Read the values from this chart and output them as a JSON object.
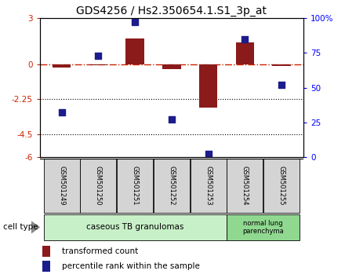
{
  "title": "GDS4256 / Hs2.350654.1.S1_3p_at",
  "samples": [
    "GSM501249",
    "GSM501250",
    "GSM501251",
    "GSM501252",
    "GSM501253",
    "GSM501254",
    "GSM501255"
  ],
  "transformed_count": [
    -0.2,
    -0.05,
    1.7,
    -0.3,
    -2.8,
    1.4,
    -0.1
  ],
  "percentile_rank": [
    32,
    73,
    97,
    27,
    2,
    85,
    52
  ],
  "ylim_left": [
    -6,
    3
  ],
  "ylim_right": [
    0,
    100
  ],
  "yticks_left": [
    -6,
    -4.5,
    -2.25,
    0,
    3
  ],
  "ytick_labels_left": [
    "-6",
    "-4.5",
    "-2.25",
    "0",
    "3"
  ],
  "yticks_right": [
    0,
    25,
    50,
    75,
    100
  ],
  "ytick_labels_right": [
    "0",
    "25",
    "50",
    "75",
    "100%"
  ],
  "hline_y": 0,
  "dotted_lines": [
    -2.25,
    -4.5
  ],
  "bar_color": "#8B1A1A",
  "dot_color": "#1C1C8C",
  "hline_color": "#CC2200",
  "group1_label": "caseous TB granulomas",
  "group2_label": "normal lung\nparenchyma",
  "group1_indices": [
    0,
    1,
    2,
    3,
    4
  ],
  "group2_indices": [
    5,
    6
  ],
  "group1_color": "#c8f0c8",
  "group2_color": "#90d890",
  "cell_type_label": "cell type",
  "legend1_label": "transformed count",
  "legend2_label": "percentile rank within the sample",
  "bar_width": 0.5,
  "dot_size": 30,
  "title_fontsize": 10,
  "tick_fontsize": 7.5,
  "label_fontsize": 7.5
}
